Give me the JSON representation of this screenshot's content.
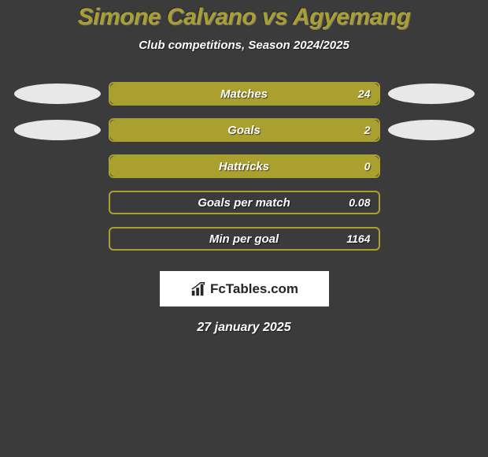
{
  "background_color": "#3b3b3b",
  "title": {
    "text": "Simone Calvano vs Agyemang",
    "color": "#a9a030"
  },
  "subtitle": "Club competitions, Season 2024/2025",
  "bubble_color": "#e8e8e8",
  "bar_bg_color": "#3b3b3b",
  "bar_border_color": "#a9a030",
  "bar_fill_color": "#a9a030",
  "rows": [
    {
      "label": "Matches",
      "value": "24",
      "fill_pct": 100,
      "left_bubble": true,
      "right_bubble": true
    },
    {
      "label": "Goals",
      "value": "2",
      "fill_pct": 100,
      "left_bubble": true,
      "right_bubble": true
    },
    {
      "label": "Hattricks",
      "value": "0",
      "fill_pct": 100,
      "left_bubble": false,
      "right_bubble": false
    },
    {
      "label": "Goals per match",
      "value": "0.08",
      "fill_pct": 0,
      "left_bubble": false,
      "right_bubble": false
    },
    {
      "label": "Min per goal",
      "value": "1164",
      "fill_pct": 0,
      "left_bubble": false,
      "right_bubble": false
    }
  ],
  "logo_text": "FcTables.com",
  "date": "27 january 2025"
}
